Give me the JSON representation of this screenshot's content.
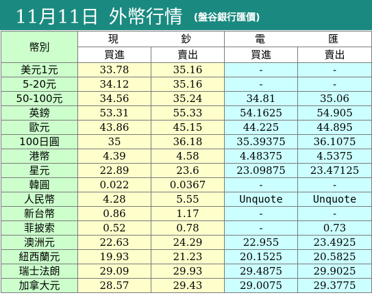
{
  "title": {
    "date": "11月11日",
    "heading": "外幣行情",
    "source": "(盤谷銀行匯價)"
  },
  "header": {
    "currency_label": "幣別",
    "cash_group": [
      "現",
      "鈔"
    ],
    "spot_group": [
      "電",
      "匯"
    ],
    "buy_label": "買進",
    "sell_label": "賣出"
  },
  "rows": [
    {
      "name": "美元1元",
      "cash_buy": "33.78",
      "cash_sell": "35.16",
      "spot_buy": "-",
      "spot_sell": "-"
    },
    {
      "name": "5-20元",
      "cash_buy": "34.12",
      "cash_sell": "35.16",
      "spot_buy": "-",
      "spot_sell": "-"
    },
    {
      "name": "50-100元",
      "cash_buy": "34.56",
      "cash_sell": "35.24",
      "spot_buy": "34.81",
      "spot_sell": "35.06"
    },
    {
      "name": "英鎊",
      "cash_buy": "53.31",
      "cash_sell": "55.33",
      "spot_buy": "54.1625",
      "spot_sell": "54.905"
    },
    {
      "name": "歐元",
      "cash_buy": "43.86",
      "cash_sell": "45.15",
      "spot_buy": "44.225",
      "spot_sell": "44.895"
    },
    {
      "name": "100日圓",
      "cash_buy": "35",
      "cash_sell": "36.18",
      "spot_buy": "35.39375",
      "spot_sell": "36.1075"
    },
    {
      "name": "港幣",
      "cash_buy": "4.39",
      "cash_sell": "4.58",
      "spot_buy": "4.48375",
      "spot_sell": "4.5375"
    },
    {
      "name": "星元",
      "cash_buy": "22.89",
      "cash_sell": "23.6",
      "spot_buy": "23.09875",
      "spot_sell": "23.47125"
    },
    {
      "name": "韓圓",
      "cash_buy": "0.022",
      "cash_sell": "0.0367",
      "spot_buy": "-",
      "spot_sell": "-"
    },
    {
      "name": "人民幣",
      "cash_buy": "4.28",
      "cash_sell": "5.55",
      "spot_buy": "Unquote",
      "spot_sell": "Unquote"
    },
    {
      "name": "新台幣",
      "cash_buy": "0.86",
      "cash_sell": "1.17",
      "spot_buy": "-",
      "spot_sell": "-"
    },
    {
      "name": "菲披索",
      "cash_buy": "0.52",
      "cash_sell": "0.78",
      "spot_buy": "-",
      "spot_sell": "0.73"
    },
    {
      "name": "澳洲元",
      "cash_buy": "22.63",
      "cash_sell": "24.29",
      "spot_buy": "22.955",
      "spot_sell": "23.4925"
    },
    {
      "name": "紐西蘭元",
      "cash_buy": "19.93",
      "cash_sell": "21.23",
      "spot_buy": "20.1525",
      "spot_sell": "20.5825"
    },
    {
      "name": "瑞士法朗",
      "cash_buy": "29.09",
      "cash_sell": "29.93",
      "spot_buy": "29.4875",
      "spot_sell": "29.9025"
    },
    {
      "name": "加拿大元",
      "cash_buy": "28.57",
      "cash_sell": "29.43",
      "spot_buy": "29.0075",
      "spot_sell": "29.3775"
    }
  ],
  "colors": {
    "title_bg": "#1a8a80",
    "label_col": "#ccffcc",
    "cash_col": "#ffffcc",
    "spot_col": "#ccffff"
  }
}
